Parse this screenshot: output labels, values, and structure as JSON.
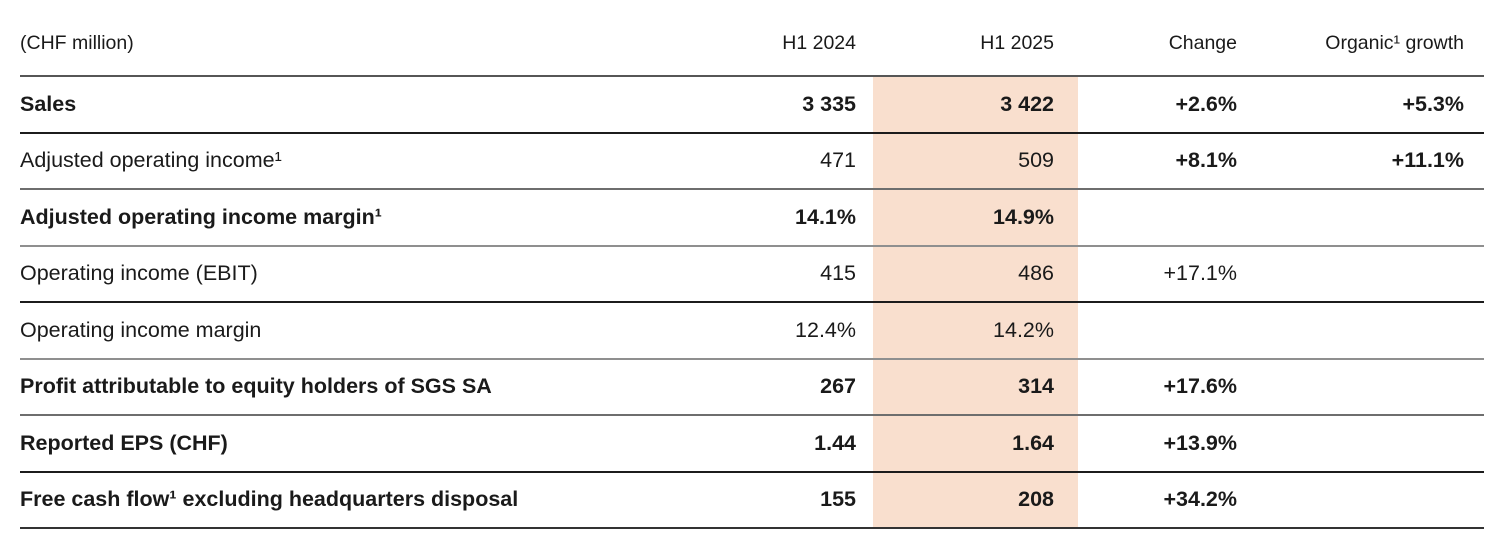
{
  "table": {
    "unit_label": "(CHF million)",
    "columns": [
      "H1 2024",
      "H1 2025",
      "Change",
      "Organic¹ growth"
    ],
    "highlight_color": "#F9DFCE",
    "text_color": "#1a1a1a",
    "rows": [
      {
        "label": "Sales",
        "bold": true,
        "h1_2024": "3 335",
        "h1_2025": "3 422",
        "change": "+2.6%",
        "organic": "+5.3%",
        "change_bold": true,
        "rule": "dark"
      },
      {
        "label": "Adjusted operating income¹",
        "bold": false,
        "h1_2024": "471",
        "h1_2025": "509",
        "change": "+8.1%",
        "organic": "+11.1%",
        "change_bold": true,
        "rule": "mid"
      },
      {
        "label": "Adjusted operating income margin¹",
        "bold": true,
        "h1_2024": "14.1%",
        "h1_2025": "14.9%",
        "change": "",
        "organic": "",
        "change_bold": false,
        "rule": "gray"
      },
      {
        "label": "Operating income (EBIT)",
        "bold": false,
        "h1_2024": "415",
        "h1_2025": "486",
        "change": "+17.1%",
        "organic": "",
        "change_bold": false,
        "rule": "dark"
      },
      {
        "label": "Operating income margin",
        "bold": false,
        "h1_2024": "12.4%",
        "h1_2025": "14.2%",
        "change": "",
        "organic": "",
        "change_bold": false,
        "rule": "gray"
      },
      {
        "label": "Profit attributable to equity holders of SGS SA",
        "bold": true,
        "h1_2024": "267",
        "h1_2025": "314",
        "change": "+17.6%",
        "organic": "",
        "change_bold": true,
        "rule": "mid"
      },
      {
        "label": "Reported EPS (CHF)",
        "bold": true,
        "h1_2024": "1.44",
        "h1_2025": "1.64",
        "change": "+13.9%",
        "organic": "",
        "change_bold": true,
        "rule": "dark"
      },
      {
        "label": "Free cash flow¹ excluding headquarters disposal",
        "bold": true,
        "h1_2024": "155",
        "h1_2025": "208",
        "change": "+34.2%",
        "organic": "",
        "change_bold": true,
        "rule": "final"
      }
    ]
  }
}
